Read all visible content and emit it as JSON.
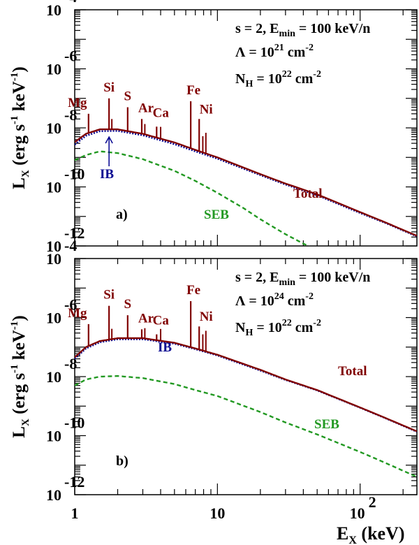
{
  "chart_data": [
    {
      "type": "line",
      "panel_label": "a)",
      "xscale": "log",
      "yscale": "log",
      "xlim": [
        1,
        250
      ],
      "ylim": [
        1e-12,
        0.0001
      ],
      "grid": false,
      "legend": "none; series labelled directly on curves",
      "ylabel": "L_X (erg s^-1 keV^-1)",
      "annotations": [
        {
          "key": "param1",
          "text": "s = 2, E_min = 100 keV/n"
        },
        {
          "key": "param2",
          "text": "Λ = 10^21 cm^-2"
        },
        {
          "key": "param3",
          "text": "N_H = 10^22 cm^-2"
        }
      ],
      "lines": [
        {
          "name": "Mg",
          "energy_keV": 1.25,
          "peak": 3e-08
        },
        {
          "name": "Si",
          "energy_keV": 1.74,
          "peak": 1e-07
        },
        {
          "name": "S",
          "energy_keV": 2.35,
          "peak": 5e-08
        },
        {
          "name": "Ar",
          "energy_keV": 2.95,
          "peak": 2e-08
        },
        {
          "name": "Ca",
          "energy_keV": 3.75,
          "peak": 1.1e-08
        },
        {
          "name": "Fe",
          "energy_keV": 6.5,
          "peak": 8e-08
        },
        {
          "name": "Ni",
          "energy_keV": 7.45,
          "peak": 2e-08
        }
      ],
      "series": [
        {
          "name": "Total",
          "color": "#800000",
          "x": [
            1,
            1.2,
            1.5,
            2,
            3,
            5,
            7,
            10,
            20,
            30,
            50,
            100,
            150,
            250
          ],
          "y": [
            3.3e-09,
            6.3e-09,
            8.9e-09,
            8.9e-09,
            6.3e-09,
            3.2e-09,
            1.8e-09,
            1e-09,
            2.7e-10,
            1.3e-10,
            5.6e-11,
            1.4e-11,
            6.3e-12,
            2.2e-12
          ]
        },
        {
          "name": "IB",
          "color": "#000090",
          "x": [
            1,
            1.2,
            1.5,
            2,
            3,
            5,
            7,
            10,
            20,
            30,
            50,
            100,
            150,
            250
          ],
          "y": [
            2.7e-09,
            5.4e-09,
            7.7e-09,
            7.9e-09,
            5.6e-09,
            2.8e-09,
            1.6e-09,
            9e-10,
            2.5e-10,
            1.2e-10,
            5.2e-11,
            1.3e-11,
            6e-12,
            2.1e-12
          ]
        },
        {
          "name": "SEB",
          "color": "#229922",
          "x": [
            1,
            1.2,
            1.5,
            2,
            3,
            5,
            7,
            10,
            15,
            20,
            30,
            40,
            45
          ],
          "y": [
            8e-10,
            1.2e-09,
            1.6e-09,
            1.4e-09,
            8.7e-10,
            3.5e-10,
            1.6e-10,
            6.3e-11,
            2e-11,
            8e-12,
            2.5e-12,
            1.2e-12,
            9e-13
          ]
        }
      ]
    },
    {
      "type": "line",
      "panel_label": "b)",
      "xscale": "log",
      "yscale": "log",
      "xlim": [
        1,
        250
      ],
      "ylim": [
        1e-12,
        0.0001
      ],
      "grid": false,
      "legend": "none; series labelled directly on curves",
      "ylabel": "L_X (erg s^-1 keV^-1)",
      "xlabel": "E_X (keV)",
      "annotations": [
        {
          "key": "param1",
          "text": "s = 2, E_min = 100 keV/n"
        },
        {
          "key": "param2",
          "text": "Λ = 10^24 cm^-2"
        },
        {
          "key": "param3",
          "text": "N_H = 10^22 cm^-2"
        }
      ],
      "lines": [
        {
          "name": "Mg",
          "energy_keV": 1.25,
          "peak": 6e-07
        },
        {
          "name": "Si",
          "energy_keV": 1.74,
          "peak": 2.5e-06
        },
        {
          "name": "S",
          "energy_keV": 2.35,
          "peak": 1.2e-06
        },
        {
          "name": "Ar",
          "energy_keV": 2.95,
          "peak": 4e-07
        },
        {
          "name": "Ca",
          "energy_keV": 3.75,
          "peak": 2.7e-07
        },
        {
          "name": "Fe",
          "energy_keV": 6.5,
          "peak": 3.6e-06
        },
        {
          "name": "Ni",
          "energy_keV": 7.45,
          "peak": 5e-07
        }
      ],
      "series": [
        {
          "name": "Total",
          "color": "#800000",
          "x": [
            1,
            1.2,
            1.5,
            2,
            3,
            5,
            7,
            10,
            20,
            30,
            50,
            100,
            150,
            250
          ],
          "y": [
            4.5e-08,
            1e-07,
            1.6e-07,
            2e-07,
            2e-07,
            1.4e-07,
            9e-08,
            5.5e-08,
            1.7e-08,
            8e-09,
            3.5e-09,
            9e-10,
            4e-10,
            1.4e-10
          ]
        },
        {
          "name": "IB",
          "color": "#000090",
          "x": [
            1,
            1.2,
            1.5,
            2,
            3,
            5,
            7,
            10,
            20,
            30,
            50,
            100,
            150,
            250
          ],
          "y": [
            4e-08,
            9e-08,
            1.45e-07,
            1.85e-07,
            1.85e-07,
            1.3e-07,
            8.5e-08,
            5.2e-08,
            1.6e-08,
            7.7e-09,
            3.4e-09,
            8.8e-10,
            3.9e-10,
            1.35e-10
          ]
        },
        {
          "name": "SEB",
          "color": "#229922",
          "x": [
            1,
            1.2,
            1.5,
            2,
            3,
            5,
            7,
            10,
            20,
            30,
            50,
            100,
            150,
            250
          ],
          "y": [
            5e-09,
            8e-09,
            1e-08,
            1.05e-08,
            8.9e-09,
            5.6e-09,
            3.5e-09,
            2.2e-09,
            6.3e-10,
            2.8e-10,
            1.1e-10,
            2.8e-11,
            1.2e-11,
            4e-12
          ]
        }
      ]
    }
  ]
}
